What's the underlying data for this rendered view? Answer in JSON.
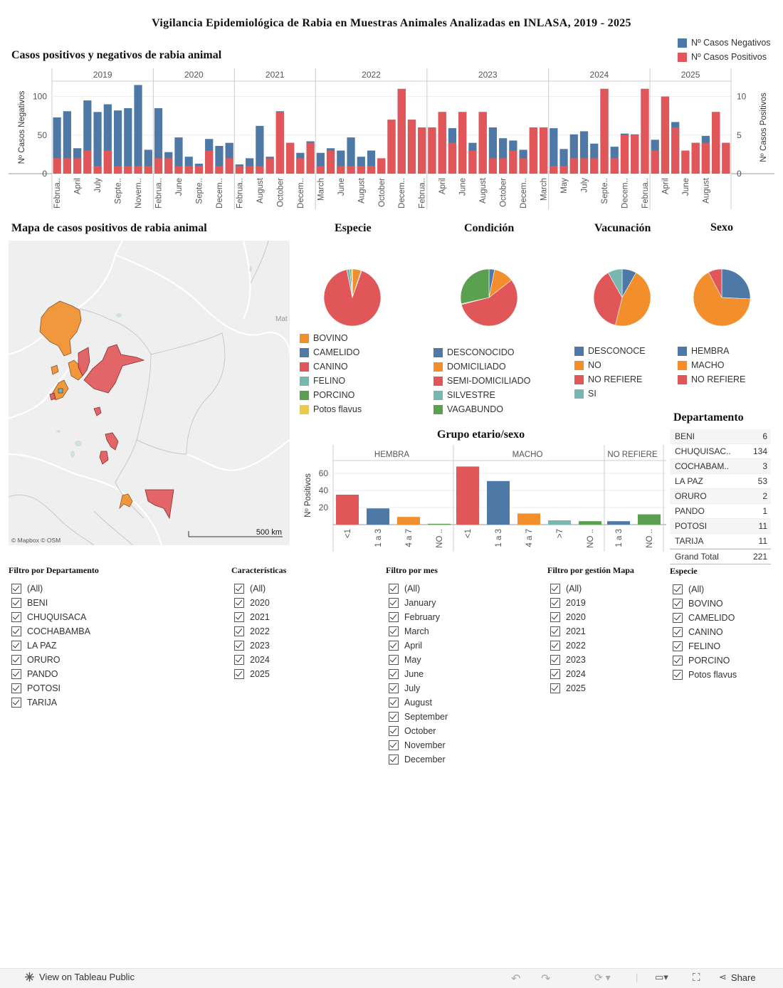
{
  "title": "Vigilancia Epidemiológica de Rabia en Muestras Animales Analizadas en INLASA, 2019 - 2025",
  "colors": {
    "blue": "#4e79a7",
    "red": "#e15759",
    "orange": "#f28e2b",
    "teal": "#76b7b2",
    "green": "#59a14f",
    "yellow": "#edc948"
  },
  "chart_data": [
    {
      "id": "monthly",
      "type": "bar",
      "title": "Casos positivos y negativos de rabia animal",
      "ylabel_left": "Nº Casos Negativos",
      "ylabel_right": "Nº Casos Positivos",
      "ylim_left": [
        0,
        120
      ],
      "ylim_right": [
        0,
        12
      ],
      "left_ticks": [
        "100",
        "50",
        "0"
      ],
      "right_ticks": [
        "10",
        "5",
        "0"
      ],
      "legend": [
        "Nº Casos Negativos",
        "Nº Casos Positivos"
      ],
      "years": [
        {
          "label": "2019",
          "count": 10
        },
        {
          "label": "2020",
          "count": 8
        },
        {
          "label": "2021",
          "count": 8
        },
        {
          "label": "2022",
          "count": 11
        },
        {
          "label": "2023",
          "count": 12
        },
        {
          "label": "2024",
          "count": 10
        },
        {
          "label": "2025",
          "count": 8
        }
      ],
      "month_labels": [
        "Februa..",
        "April",
        "July",
        "Septe..",
        "Novem..",
        "Februa..",
        "June",
        "Septe..",
        "Decem..",
        "Februa..",
        "August",
        "October",
        "Decem..",
        "March",
        "June",
        "August",
        "October",
        "Decem..",
        "Februa..",
        "April",
        "June",
        "August",
        "October",
        "Decem..",
        "March",
        "May",
        "July",
        "Septe..",
        "Decem..",
        "Februa..",
        "April",
        "June",
        "August"
      ],
      "series": [
        {
          "name": "Nº Casos Negativos",
          "values": [
            73,
            81,
            33,
            95,
            80,
            90,
            82,
            85,
            115,
            31,
            85,
            28,
            47,
            22,
            13,
            45,
            36,
            40,
            12,
            20,
            62,
            22,
            81,
            40,
            27,
            42,
            27,
            33,
            30,
            47,
            22,
            30,
            18,
            70,
            110,
            70,
            60,
            60,
            80,
            59,
            80,
            40,
            80,
            60,
            46,
            43,
            31,
            60,
            60,
            59,
            32,
            51,
            55,
            39,
            110,
            35,
            52,
            51,
            110,
            44,
            100,
            67,
            29,
            40,
            49,
            80,
            40
          ]
        },
        {
          "name": "Nº Casos Positivos",
          "values": [
            2,
            2,
            2,
            3,
            1,
            3,
            1,
            1,
            1,
            1,
            2,
            2,
            1,
            1,
            1,
            3,
            1,
            2,
            1,
            1,
            1,
            2,
            8,
            4,
            2,
            4,
            1,
            3,
            1,
            1,
            1,
            1,
            2,
            7,
            11,
            7,
            6,
            6,
            8,
            4,
            8,
            3,
            8,
            2,
            2,
            3,
            2,
            6,
            6,
            1,
            1,
            2,
            2,
            2,
            11,
            2,
            5,
            5,
            11,
            3,
            10,
            6,
            3,
            4,
            4,
            8,
            4
          ]
        }
      ]
    },
    {
      "id": "especie",
      "type": "pie",
      "title": "Especie",
      "categories": [
        "BOVINO",
        "CAMELIDO",
        "CANINO",
        "FELINO",
        "PORCINO",
        "Potos flavus"
      ],
      "values": [
        11,
        1,
        202,
        4,
        2,
        1
      ]
    },
    {
      "id": "condicion",
      "type": "pie",
      "title": "Condición",
      "categories": [
        "DESCONOCIDO",
        "DOMICILIADO",
        "SEMI-DOMICILIADO",
        "SILVESTRE",
        "VAGABUNDO"
      ],
      "values": [
        7,
        25,
        125,
        1,
        63
      ]
    },
    {
      "id": "vacunacion",
      "type": "pie",
      "title": "Vacunación",
      "categories": [
        "DESCONOCE",
        "NO",
        "NO REFIERE",
        "SI"
      ],
      "values": [
        18,
        101,
        84,
        18
      ]
    },
    {
      "id": "sexo",
      "type": "pie",
      "title": "Sexo",
      "categories": [
        "HEMBRA",
        "MACHO",
        "NO REFIERE"
      ],
      "values": [
        57,
        147,
        17
      ]
    },
    {
      "id": "grupo",
      "type": "bar",
      "title": "Grupo etario/sexo",
      "ylabel": "Nº Positivos",
      "ylim": [
        0,
        75
      ],
      "y_ticks": [
        "60",
        "40",
        "20"
      ],
      "groups": [
        {
          "name": "HEMBRA",
          "bars": [
            {
              "label": "<1",
              "value": 35,
              "color": "red"
            },
            {
              "label": "1 a 3",
              "value": 19,
              "color": "blue"
            },
            {
              "label": "4 a 7",
              "value": 9,
              "color": "orange"
            },
            {
              "label": "NO ..",
              "value": 1,
              "color": "green"
            }
          ]
        },
        {
          "name": "MACHO",
          "bars": [
            {
              "label": "<1",
              "value": 68,
              "color": "red"
            },
            {
              "label": "1 a 3",
              "value": 51,
              "color": "blue"
            },
            {
              "label": "4 a 7",
              "value": 13,
              "color": "orange"
            },
            {
              "label": ">7",
              "value": 5,
              "color": "teal"
            },
            {
              "label": "NO ..",
              "value": 4,
              "color": "green"
            }
          ]
        },
        {
          "name": "NO REFIERE",
          "bars": [
            {
              "label": "1 a 3",
              "value": 4,
              "color": "blue"
            },
            {
              "label": "NO ..",
              "value": 12,
              "color": "green"
            }
          ]
        }
      ]
    }
  ],
  "map": {
    "title": "Mapa de casos positivos de rabia animal",
    "place_label": "Mat",
    "scale": "500 km",
    "attribution": "© Mapbox  © OSM"
  },
  "departamento": {
    "title": "Departamento",
    "rows": [
      {
        "name": "BENI",
        "value": "6"
      },
      {
        "name": "CHUQUISAC..",
        "value": "134"
      },
      {
        "name": "COCHABAM..",
        "value": "3"
      },
      {
        "name": "LA PAZ",
        "value": "53"
      },
      {
        "name": "ORURO",
        "value": "2"
      },
      {
        "name": "PANDO",
        "value": "1"
      },
      {
        "name": "POTOSI",
        "value": "11"
      },
      {
        "name": "TARIJA",
        "value": "11"
      }
    ],
    "total_label": "Grand Total",
    "total_value": "221"
  },
  "filters": [
    {
      "title": "Filtro por Departamento",
      "options": [
        "(All)",
        "BENI",
        "CHUQUISACA",
        "COCHABAMBA",
        "LA PAZ",
        "ORURO",
        "PANDO",
        "POTOSI",
        "TARIJA"
      ]
    },
    {
      "title": "Características",
      "options": [
        "(All)",
        "2020",
        "2021",
        "2022",
        "2023",
        "2024",
        "2025"
      ]
    },
    {
      "title": "Filtro por mes",
      "options": [
        "(All)",
        "January",
        "February",
        "March",
        "April",
        "May",
        "June",
        "July",
        "August",
        "September",
        "October",
        "November",
        "December"
      ]
    },
    {
      "title": "Filtro por gestión Mapa",
      "options": [
        "(All)",
        "2019",
        "2020",
        "2021",
        "2022",
        "2023",
        "2024",
        "2025"
      ]
    },
    {
      "title": "Especie",
      "options": [
        "(All)",
        "BOVINO",
        "CAMELIDO",
        "CANINO",
        "FELINO",
        "PORCINO",
        "Potos flavus"
      ]
    }
  ],
  "toolbar": {
    "view_label": "View on Tableau Public",
    "share_label": "Share"
  }
}
